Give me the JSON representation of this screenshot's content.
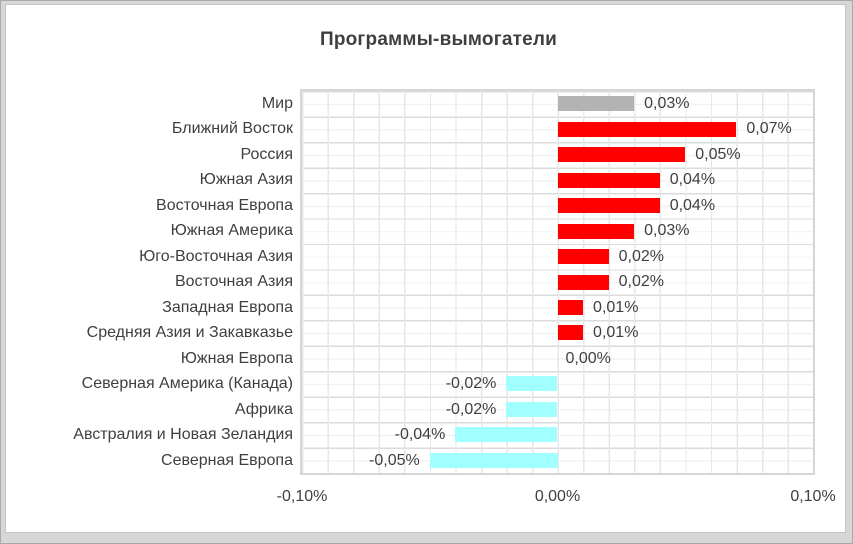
{
  "chart_data": {
    "type": "bar",
    "orientation": "horizontal",
    "title": "Программы-вымогатели",
    "xlabel": "",
    "ylabel": "",
    "xlim": [
      -0.1,
      0.1
    ],
    "grid": true,
    "legend": false,
    "value_unit": "%",
    "x_ticks": [
      {
        "value": -0.1,
        "label": "-0,10%"
      },
      {
        "value": 0.0,
        "label": "0,00%"
      },
      {
        "value": 0.1,
        "label": "0,10%"
      }
    ],
    "rows": [
      {
        "category": "Мир",
        "value": 0.03,
        "label": "0,03%",
        "color": "#b3b3b3"
      },
      {
        "category": "Ближний Восток",
        "value": 0.07,
        "label": "0,07%",
        "color": "#ff0000"
      },
      {
        "category": "Россия",
        "value": 0.05,
        "label": "0,05%",
        "color": "#ff0000"
      },
      {
        "category": "Южная Азия",
        "value": 0.04,
        "label": "0,04%",
        "color": "#ff0000"
      },
      {
        "category": "Восточная Европа",
        "value": 0.04,
        "label": "0,04%",
        "color": "#ff0000"
      },
      {
        "category": "Южная Америка",
        "value": 0.03,
        "label": "0,03%",
        "color": "#ff0000"
      },
      {
        "category": "Юго-Восточная Азия",
        "value": 0.02,
        "label": "0,02%",
        "color": "#ff0000"
      },
      {
        "category": "Восточная Азия",
        "value": 0.02,
        "label": "0,02%",
        "color": "#ff0000"
      },
      {
        "category": "Западная Европа",
        "value": 0.01,
        "label": "0,01%",
        "color": "#ff0000"
      },
      {
        "category": "Средняя Азия и Закавказье",
        "value": 0.01,
        "label": "0,01%",
        "color": "#ff0000"
      },
      {
        "category": "Южная Европа",
        "value": 0.0,
        "label": "0,00%",
        "color": "#ff0000"
      },
      {
        "category": "Северная Америка (Канада)",
        "value": -0.02,
        "label": "-0,02%",
        "color": "#a1ffff"
      },
      {
        "category": "Африка",
        "value": -0.02,
        "label": "-0,02%",
        "color": "#a1ffff"
      },
      {
        "category": "Австралия и Новая Зеландия",
        "value": -0.04,
        "label": "-0,04%",
        "color": "#a1ffff"
      },
      {
        "category": "Северная Европа",
        "value": -0.05,
        "label": "-0,05%",
        "color": "#a1ffff"
      }
    ],
    "colors": {
      "world_bar": "#b3b3b3",
      "positive_bar": "#ff0000",
      "negative_bar": "#a1ffff",
      "text": "#3f3f3f"
    }
  }
}
